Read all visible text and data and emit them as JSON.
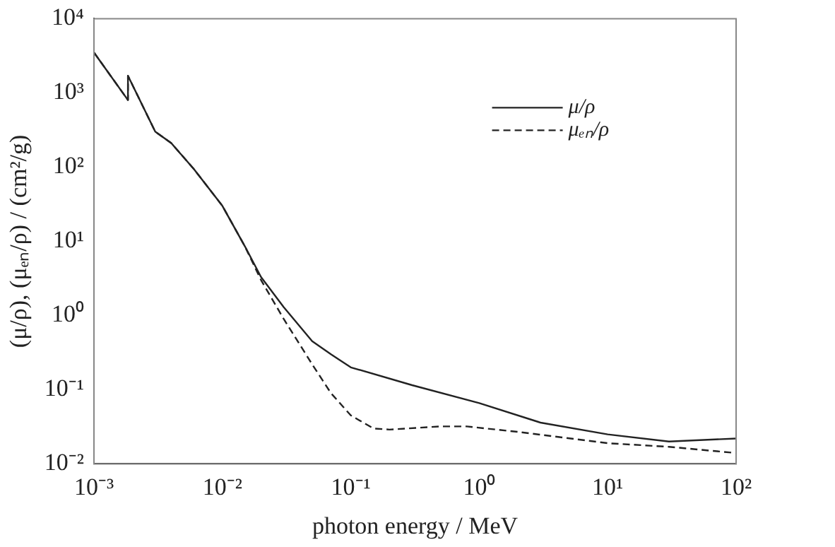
{
  "chart_data": {
    "type": "line",
    "xlabel": "photon energy / MeV",
    "ylabel": "(μ/ρ), (μₑₙ/ρ) / (cm²/g)",
    "log": "xy",
    "grid": false,
    "legend": "top right",
    "marker": "none",
    "xlim": [
      0.001,
      100
    ],
    "ylim": [
      0.01,
      10000
    ],
    "xticks": [
      {
        "value": 0.001,
        "label": "10⁻³"
      },
      {
        "value": 0.01,
        "label": "10⁻²"
      },
      {
        "value": 0.1,
        "label": "10⁻¹"
      },
      {
        "value": 1,
        "label": "10⁰"
      },
      {
        "value": 10,
        "label": "10¹"
      },
      {
        "value": 100,
        "label": "10²"
      }
    ],
    "yticks": [
      {
        "value": 0.01,
        "label": "10⁻²"
      },
      {
        "value": 0.1,
        "label": "10⁻¹"
      },
      {
        "value": 1,
        "label": "10⁰"
      },
      {
        "value": 10,
        "label": "10¹"
      },
      {
        "value": 100,
        "label": "10²"
      },
      {
        "value": 1000,
        "label": "10³"
      },
      {
        "value": 10000,
        "label": "10⁴"
      }
    ],
    "series": [
      {
        "name": "μ/ρ",
        "color": "#222222",
        "line_style": "solid",
        "x": [
          0.001,
          0.00184,
          0.00184,
          0.003,
          0.004,
          0.006,
          0.01,
          0.015,
          0.02,
          0.03,
          0.05,
          0.07,
          0.1,
          0.3,
          1,
          3,
          10,
          30,
          100
        ],
        "values": [
          3500,
          800,
          1700,
          300,
          210,
          94,
          30,
          8.5,
          3.3,
          1.3,
          0.45,
          0.3,
          0.2,
          0.115,
          0.066,
          0.036,
          0.025,
          0.02,
          0.022
        ]
      },
      {
        "name": "μₑₙ/ρ",
        "color": "#222222",
        "line_style": "dashed",
        "x": [
          0.001,
          0.00184,
          0.00184,
          0.003,
          0.004,
          0.006,
          0.01,
          0.015,
          0.02,
          0.03,
          0.05,
          0.07,
          0.1,
          0.15,
          0.2,
          0.5,
          0.8,
          2,
          10,
          30,
          100
        ],
        "values": [
          3500,
          800,
          1700,
          300,
          210,
          94,
          30,
          8.5,
          3,
          0.9,
          0.22,
          0.09,
          0.045,
          0.03,
          0.029,
          0.032,
          0.032,
          0.027,
          0.019,
          0.017,
          0.014
        ]
      }
    ]
  }
}
